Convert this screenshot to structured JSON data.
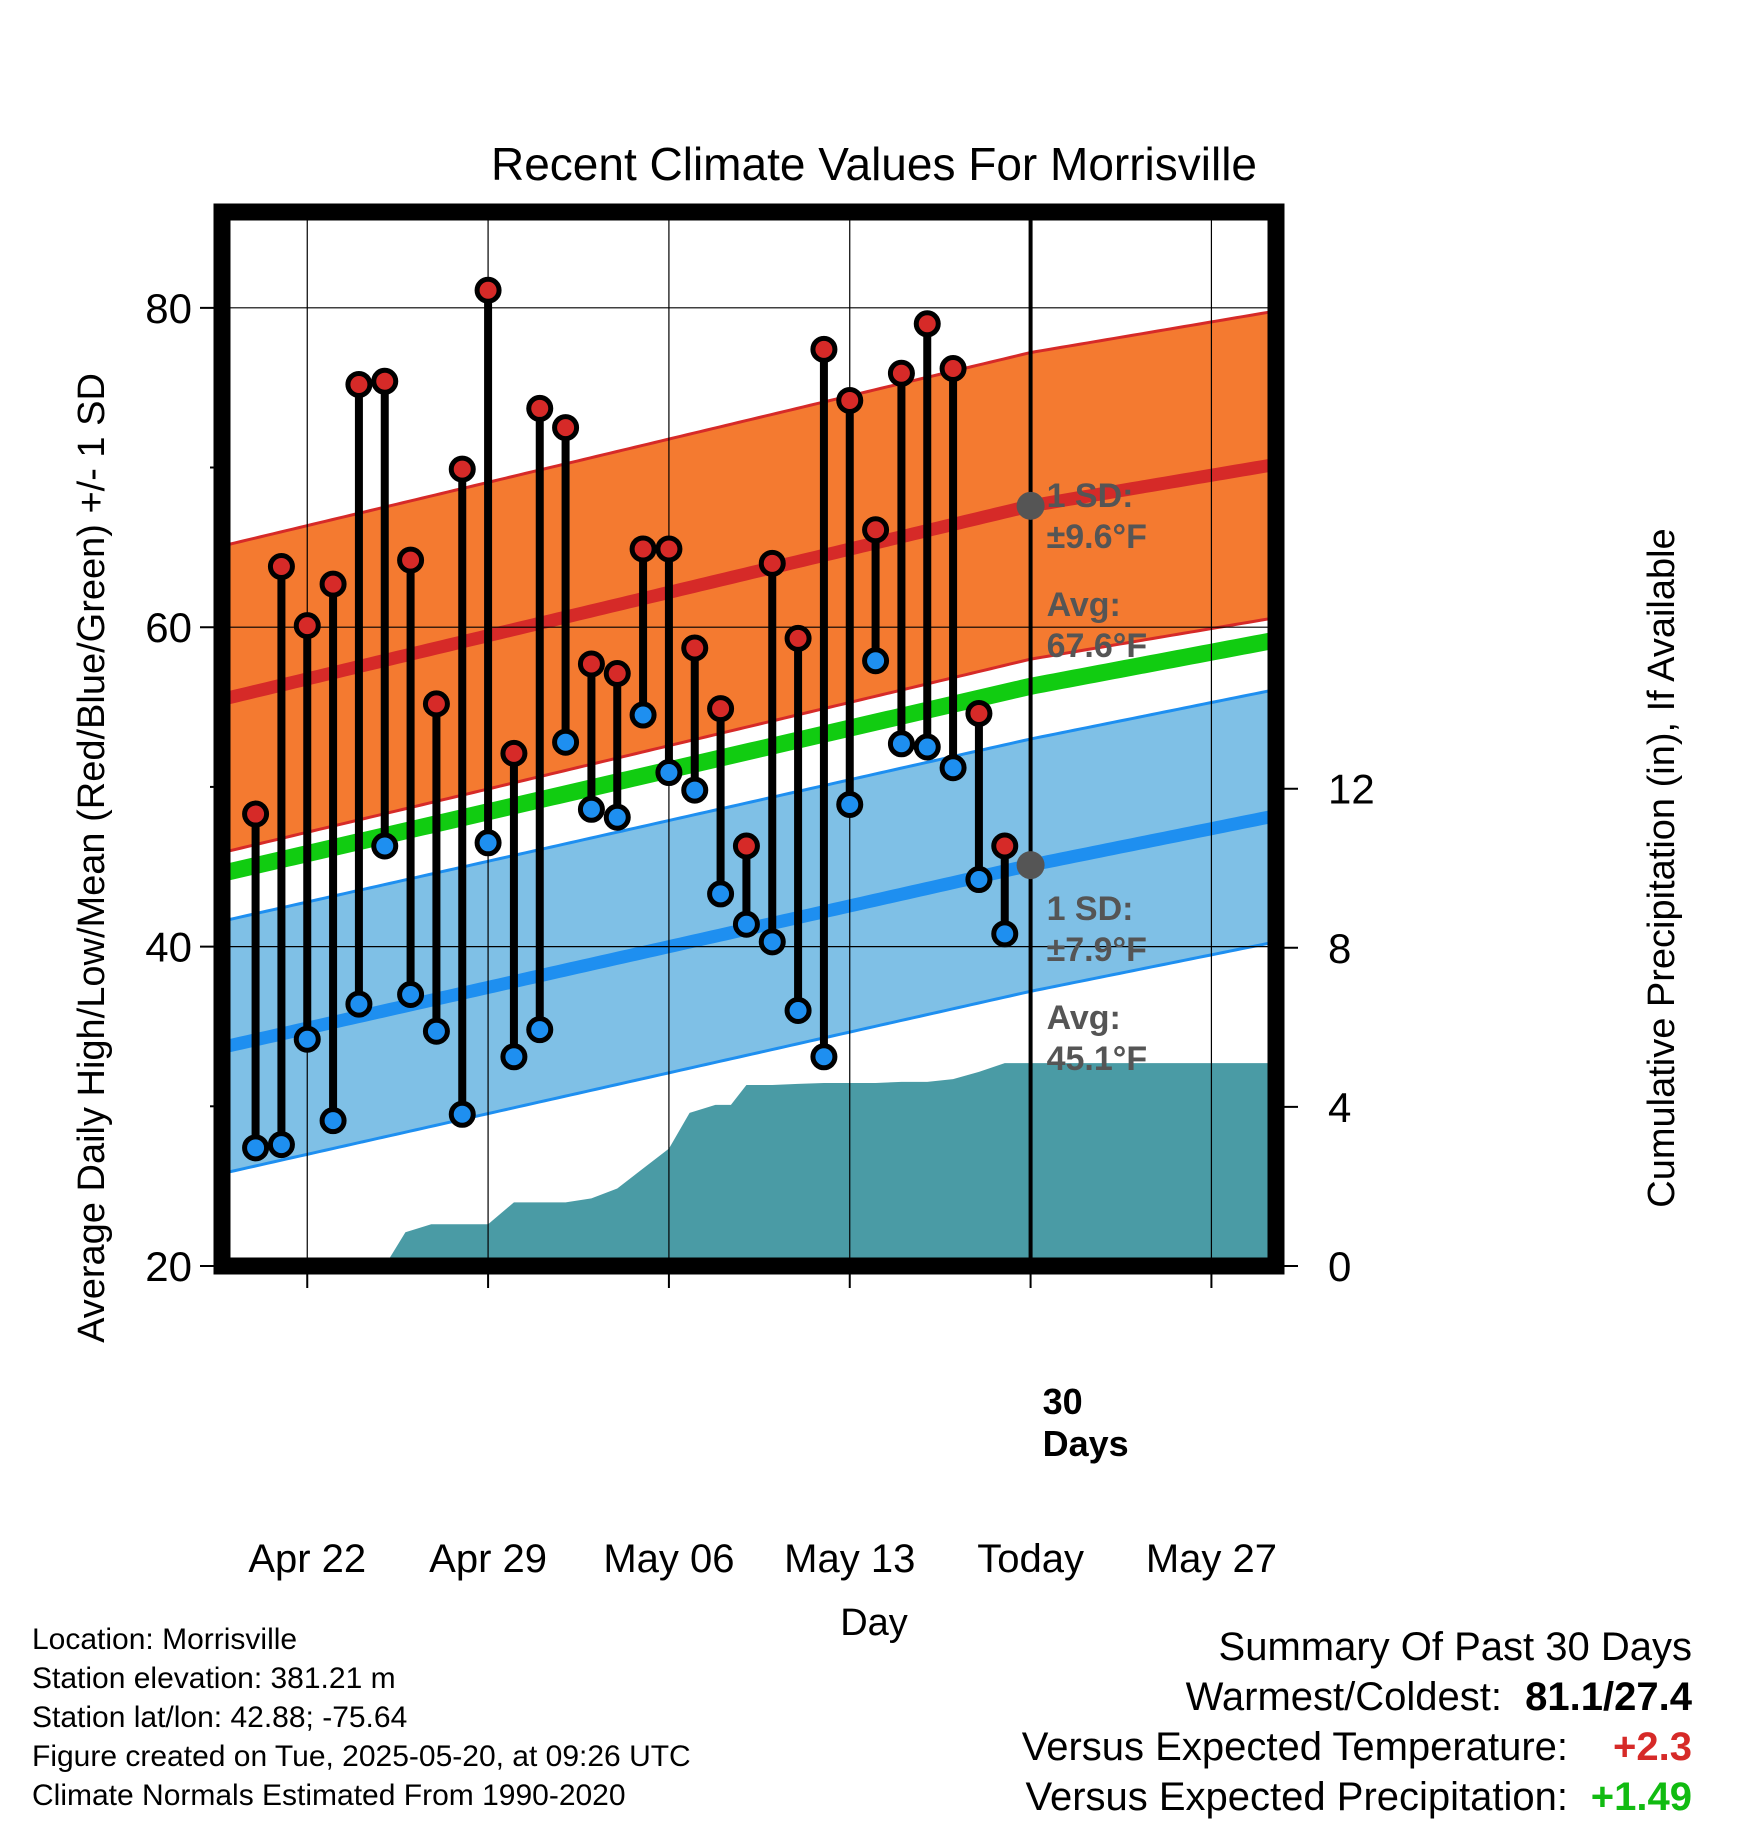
{
  "chart_data": {
    "type": "line",
    "title": "Recent Climate Values For Morrisville",
    "xlabel": "Day",
    "ylabel_left": "Average Daily High/Low/Mean (Red/Blue/Green) +/- 1 SD",
    "ylabel_right": "Cumulative Precipitation (in), If Available",
    "x_ticks": [
      "Apr 22",
      "Apr 29",
      "May 06",
      "May 13",
      "Today",
      "May 27"
    ],
    "x_tick_days": [
      22,
      29,
      36,
      43,
      50,
      57
    ],
    "xlim_days": [
      18.7,
      59.5
    ],
    "ylim_left": [
      20,
      86
    ],
    "y_ticks_left": [
      20,
      40,
      60,
      80
    ],
    "ylim_right": [
      0,
      26.5
    ],
    "y_ticks_right": [
      0,
      4,
      8,
      12
    ],
    "today_day": 50,
    "today_label": "30 Days",
    "normal_high": {
      "days": [
        19,
        50,
        59.5
      ],
      "avg": [
        55.6,
        67.6,
        70.2
      ],
      "sd": 9.6
    },
    "normal_low": {
      "days": [
        19,
        50,
        59.5
      ],
      "avg": [
        33.8,
        45.1,
        48.2
      ],
      "sd": 7.9
    },
    "normal_mean": {
      "days": [
        19,
        50,
        59.5
      ],
      "values": [
        44.7,
        56.3,
        59.2
      ]
    },
    "daily_days": [
      20,
      21,
      22,
      23,
      24,
      25,
      26,
      27,
      28,
      29,
      30,
      31,
      32,
      33,
      34,
      35,
      36,
      37,
      38,
      39,
      40,
      41,
      42,
      43,
      44,
      45,
      46,
      47,
      48,
      49
    ],
    "daily_high": [
      48.3,
      63.8,
      60.1,
      62.7,
      75.2,
      75.4,
      64.2,
      55.2,
      69.9,
      81.1,
      52.1,
      73.7,
      72.5,
      57.7,
      57.1,
      64.9,
      64.9,
      58.7,
      54.9,
      46.3,
      64.0,
      59.3,
      77.4,
      74.2,
      66.1,
      75.9,
      79.0,
      76.2,
      54.6,
      46.3
    ],
    "daily_low": [
      27.4,
      27.6,
      34.2,
      29.1,
      36.4,
      46.3,
      37.0,
      34.7,
      29.5,
      46.5,
      33.1,
      34.8,
      52.8,
      48.6,
      48.1,
      54.5,
      50.9,
      49.8,
      43.3,
      41.4,
      40.3,
      36.0,
      33.1,
      48.9,
      57.9,
      52.7,
      52.5,
      51.2,
      44.2,
      40.8
    ],
    "precip_days": [
      22,
      24,
      25,
      25.8,
      26.8,
      28,
      29,
      30,
      31,
      32,
      33,
      34,
      35,
      36,
      36.8,
      37.8,
      38.4,
      39,
      40,
      41,
      42,
      43,
      44,
      45,
      46,
      47,
      48,
      49,
      50,
      52,
      54,
      56,
      59.5
    ],
    "precip_values": [
      0,
      0,
      0,
      0.85,
      1.05,
      1.05,
      1.05,
      1.6,
      1.6,
      1.6,
      1.7,
      1.95,
      2.45,
      2.95,
      3.85,
      4.05,
      4.05,
      4.55,
      4.55,
      4.58,
      4.6,
      4.6,
      4.6,
      4.63,
      4.63,
      4.7,
      4.88,
      5.1,
      5.1,
      5.1,
      5.1,
      5.1,
      5.1
    ],
    "annotations": {
      "high_sd_label": "1 SD:",
      "high_sd_value": "±9.6°F",
      "high_avg_label": "Avg:",
      "high_avg_value": "67.6°F",
      "low_sd_label": "1 SD:",
      "low_sd_value": "±7.9°F",
      "low_avg_label": "Avg:",
      "low_avg_value": "45.1°F"
    },
    "colors": {
      "high_band": "#f47a30",
      "high_avg": "#d62a28",
      "low_band": "#7fc0e6",
      "low_avg": "#1e8ff0",
      "mean": "#11cc11",
      "precip": "#4a9ba5",
      "high_dot": "#d62a28",
      "low_dot": "#1e8ff0",
      "avg_marker": "#555555"
    }
  },
  "info": {
    "location": "Location: Morrisville",
    "elevation": "Station elevation: 381.21 m",
    "latlon": "Station lat/lon: 42.88; -75.64",
    "created": "Figure created on Tue, 2025-05-20, at 09:26 UTC",
    "normals": "Climate Normals Estimated From 1990-2020"
  },
  "summary": {
    "title": "Summary Of Past 30 Days",
    "warm_cold_label": "Warmest/Coldest:",
    "warm_cold_value": "81.1/27.4",
    "temp_label": "Versus Expected Temperature:",
    "temp_value": "+2.3",
    "temp_color": "#d62a28",
    "precip_label": "Versus Expected Precipitation:",
    "precip_value": "+1.49",
    "precip_color": "#11bb11"
  }
}
